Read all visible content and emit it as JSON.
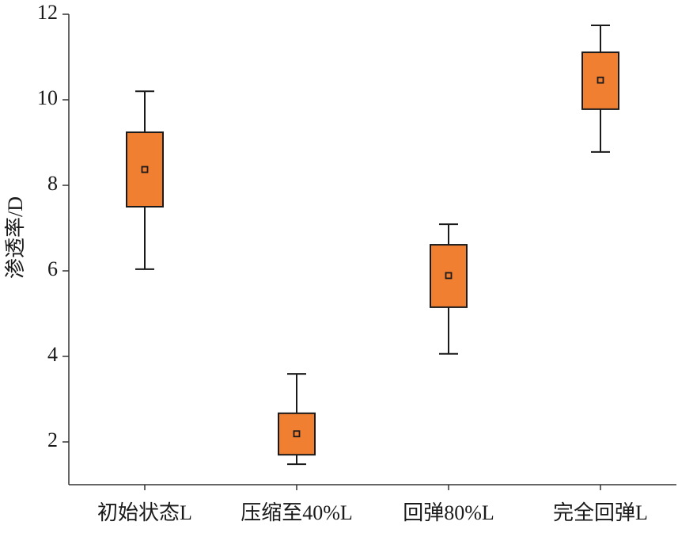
{
  "chart_data": {
    "type": "box",
    "y_label": "渗透率/D",
    "categories": [
      "初始状态L",
      "压缩至40%L",
      "回弹80%L",
      "完全回弹L"
    ],
    "whisker_low": [
      6.04,
      1.48,
      4.06,
      8.78
    ],
    "q1": [
      7.5,
      1.7,
      5.15,
      9.78
    ],
    "mean": [
      8.37,
      2.19,
      5.89,
      10.46
    ],
    "q3": [
      9.24,
      2.67,
      6.61,
      11.11
    ],
    "whisker_high": [
      10.2,
      3.59,
      7.09,
      11.74
    ],
    "color": "#f07f31",
    "ylim": [
      1,
      12
    ],
    "yticks": [
      2,
      4,
      6,
      8,
      10,
      12
    ]
  }
}
